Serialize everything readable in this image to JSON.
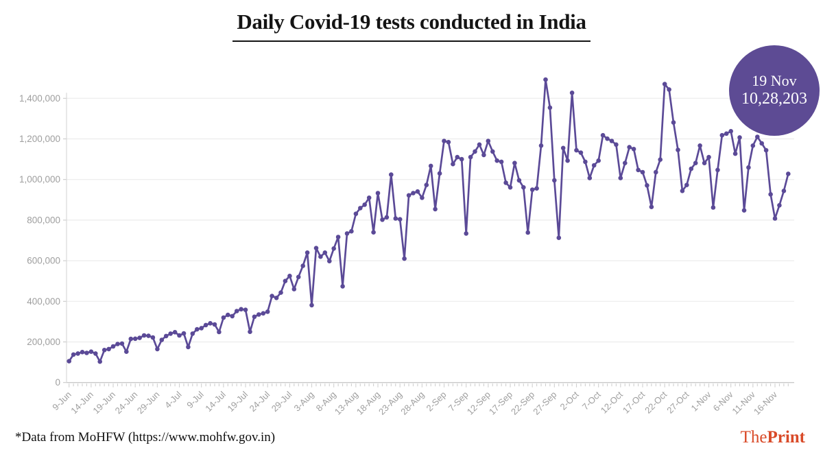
{
  "title": "Daily Covid-19 tests conducted in India",
  "badge": {
    "date": "19 Nov",
    "value": "10,28,203"
  },
  "footer": {
    "source": "*Data from MoHFW (https://www.mohfw.gov.in)"
  },
  "logo": {
    "the": "The",
    "print": "Print"
  },
  "colors": {
    "line": "#5b4a97",
    "badge_bg": "#5d4b94",
    "badge_text": "#ffffff",
    "grid": "#ececec",
    "baseline": "#c9c9c9",
    "axis_text": "#9e9e9e",
    "tick": "#cfcfcf",
    "logo_red": "#d94a28"
  },
  "chart_data": {
    "type": "line",
    "title": "Daily Covid-19 tests conducted in India",
    "xlabel": "",
    "ylabel": "",
    "ylim": [
      0,
      1400000
    ],
    "grid": "horizontal",
    "legend": "none",
    "marker": "circle",
    "y_ticks": [
      0,
      200000,
      400000,
      600000,
      800000,
      1000000,
      1200000,
      1400000
    ],
    "y_tick_labels": [
      "0",
      "200,000",
      "400,000",
      "600,000",
      "800,000",
      "1,000,000",
      "1,200,000",
      "1,400,000"
    ],
    "x_tick_labels": [
      "9-Jun",
      "14-Jun",
      "19-Jun",
      "24-Jun",
      "29-Jun",
      "4-Jul",
      "9-Jul",
      "14-Jul",
      "19-Jul",
      "24-Jul",
      "29-Jul",
      "3-Aug",
      "8-Aug",
      "13-Aug",
      "18-Aug",
      "23-Aug",
      "28-Aug",
      "2-Sep",
      "7-Sep",
      "12-Sep",
      "17-Sep",
      "22-Sep",
      "27-Sep",
      "2-Oct",
      "7-Oct",
      "12-Oct",
      "17-Oct",
      "22-Oct",
      "27-Oct",
      "1-Nov",
      "6-Nov",
      "11-Nov",
      "16-Nov"
    ],
    "dates": [
      "9-Jun",
      "10-Jun",
      "11-Jun",
      "12-Jun",
      "13-Jun",
      "14-Jun",
      "15-Jun",
      "16-Jun",
      "17-Jun",
      "18-Jun",
      "19-Jun",
      "20-Jun",
      "21-Jun",
      "22-Jun",
      "23-Jun",
      "24-Jun",
      "25-Jun",
      "26-Jun",
      "27-Jun",
      "28-Jun",
      "29-Jun",
      "30-Jun",
      "1-Jul",
      "2-Jul",
      "3-Jul",
      "4-Jul",
      "5-Jul",
      "6-Jul",
      "7-Jul",
      "8-Jul",
      "9-Jul",
      "10-Jul",
      "11-Jul",
      "12-Jul",
      "13-Jul",
      "14-Jul",
      "15-Jul",
      "16-Jul",
      "17-Jul",
      "18-Jul",
      "19-Jul",
      "20-Jul",
      "21-Jul",
      "22-Jul",
      "23-Jul",
      "24-Jul",
      "25-Jul",
      "26-Jul",
      "27-Jul",
      "28-Jul",
      "29-Jul",
      "30-Jul",
      "31-Jul",
      "1-Aug",
      "2-Aug",
      "3-Aug",
      "4-Aug",
      "5-Aug",
      "6-Aug",
      "7-Aug",
      "8-Aug",
      "9-Aug",
      "10-Aug",
      "11-Aug",
      "12-Aug",
      "13-Aug",
      "14-Aug",
      "15-Aug",
      "16-Aug",
      "17-Aug",
      "18-Aug",
      "19-Aug",
      "20-Aug",
      "21-Aug",
      "22-Aug",
      "23-Aug",
      "24-Aug",
      "25-Aug",
      "26-Aug",
      "27-Aug",
      "28-Aug",
      "29-Aug",
      "30-Aug",
      "31-Aug",
      "1-Sep",
      "2-Sep",
      "3-Sep",
      "4-Sep",
      "5-Sep",
      "6-Sep",
      "7-Sep",
      "8-Sep",
      "9-Sep",
      "10-Sep",
      "11-Sep",
      "12-Sep",
      "13-Sep",
      "14-Sep",
      "15-Sep",
      "16-Sep",
      "17-Sep",
      "18-Sep",
      "19-Sep",
      "20-Sep",
      "21-Sep",
      "22-Sep",
      "23-Sep",
      "24-Sep",
      "25-Sep",
      "26-Sep",
      "27-Sep",
      "28-Sep",
      "29-Sep",
      "30-Sep",
      "1-Oct",
      "2-Oct",
      "3-Oct",
      "4-Oct",
      "5-Oct",
      "6-Oct",
      "7-Oct",
      "8-Oct",
      "9-Oct",
      "10-Oct",
      "11-Oct",
      "12-Oct",
      "13-Oct",
      "14-Oct",
      "15-Oct",
      "16-Oct",
      "17-Oct",
      "18-Oct",
      "19-Oct",
      "20-Oct",
      "21-Oct",
      "22-Oct",
      "23-Oct",
      "24-Oct",
      "25-Oct",
      "26-Oct",
      "27-Oct",
      "28-Oct",
      "29-Oct",
      "30-Oct",
      "31-Oct",
      "1-Nov",
      "2-Nov",
      "3-Nov",
      "4-Nov",
      "5-Nov",
      "6-Nov",
      "7-Nov",
      "8-Nov",
      "9-Nov",
      "10-Nov",
      "11-Nov",
      "12-Nov",
      "13-Nov",
      "14-Nov",
      "15-Nov",
      "16-Nov",
      "17-Nov",
      "18-Nov",
      "19-Nov"
    ],
    "values": [
      105000,
      138000,
      143000,
      150000,
      146000,
      152000,
      143000,
      103000,
      160000,
      165000,
      178000,
      190000,
      192000,
      152000,
      215000,
      216000,
      220000,
      232000,
      230000,
      222000,
      165000,
      210000,
      229000,
      241000,
      248000,
      232000,
      242000,
      175000,
      241000,
      262000,
      268000,
      283000,
      292000,
      286000,
      249000,
      320000,
      333000,
      327000,
      352000,
      361000,
      358000,
      250000,
      324000,
      335000,
      341000,
      349000,
      426000,
      417000,
      443000,
      500000,
      525000,
      460000,
      520000,
      575000,
      640000,
      381000,
      662000,
      620000,
      640000,
      598000,
      660000,
      717000,
      474000,
      734000,
      745000,
      831000,
      859000,
      876000,
      910000,
      740000,
      933000,
      802000,
      814000,
      1024000,
      808000,
      804000,
      610000,
      922000,
      933000,
      941000,
      910000,
      973000,
      1067000,
      854000,
      1030000,
      1190000,
      1184000,
      1076000,
      1110000,
      1100000,
      734000,
      1110000,
      1138000,
      1172000,
      1121000,
      1190000,
      1138000,
      1093000,
      1087000,
      984000,
      961000,
      1081000,
      996000,
      961000,
      739000,
      950000,
      956000,
      1167000,
      1492000,
      1354000,
      996000,
      713000,
      1155000,
      1093000,
      1427000,
      1144000,
      1132000,
      1087000,
      1007000,
      1070000,
      1093000,
      1218000,
      1201000,
      1190000,
      1172000,
      1007000,
      1081000,
      1159000,
      1150000,
      1047000,
      1036000,
      971000,
      865000,
      1036000,
      1098000,
      1470000,
      1443000,
      1281000,
      1146000,
      944000,
      973000,
      1053000,
      1081000,
      1167000,
      1081000,
      1110000,
      862000,
      1047000,
      1218000,
      1226000,
      1238000,
      1127000,
      1207000,
      848000,
      1059000,
      1167000,
      1210000,
      1178000,
      1144000,
      927000,
      808000,
      873000,
      944000,
      1028203
    ],
    "annotation": {
      "label": "19 Nov",
      "value": 1028203,
      "value_text": "10,28,203"
    }
  }
}
